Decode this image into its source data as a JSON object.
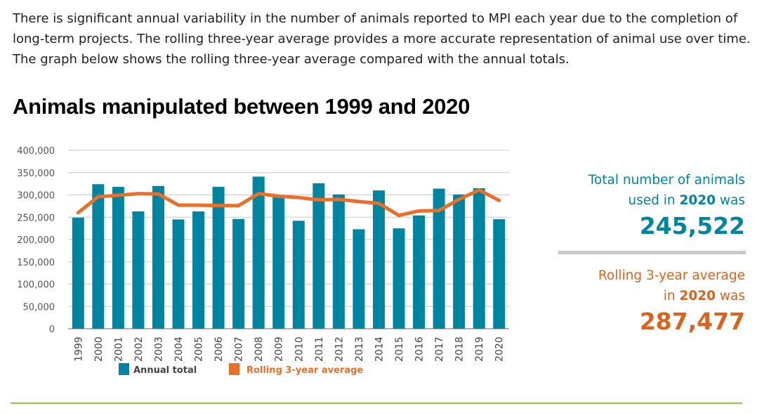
{
  "intro_text": "There is significant annual variability in the number of animals reported to MPI each year due to the completion of long-term projects. The rolling three-year average provides a more accurate representation of animal use over time. The graph below shows the rolling three-year average compared with the annual totals.",
  "chart_data": {
    "type": "bar",
    "title": "Animals manipulated between 1999 and 2020",
    "categories": [
      "1999",
      "2000",
      "2001",
      "2002",
      "2003",
      "2004",
      "2005",
      "2006",
      "2007",
      "2008",
      "2009",
      "2010",
      "2011",
      "2012",
      "2013",
      "2014",
      "2015",
      "2016",
      "2017",
      "2018",
      "2019",
      "2020"
    ],
    "series": [
      {
        "name": "Annual total",
        "type": "bar",
        "color": "#00849f",
        "values": [
          249000,
          324000,
          318000,
          263000,
          320000,
          245000,
          263000,
          318000,
          246000,
          341000,
          295000,
          242000,
          326000,
          301000,
          223000,
          310000,
          225000,
          254000,
          314000,
          301000,
          315000,
          245522
        ]
      },
      {
        "name": "Rolling 3-year average",
        "type": "line",
        "color": "#e8702a",
        "values": [
          260000,
          296000,
          299000,
          303000,
          302000,
          277000,
          277000,
          276000,
          276000,
          303000,
          297000,
          294000,
          289000,
          290000,
          285000,
          281000,
          254000,
          264000,
          265000,
          290000,
          311000,
          287477
        ]
      }
    ],
    "yticks": [
      "0",
      "50,000",
      "100,000",
      "150,000",
      "200,000",
      "250,000",
      "300,000",
      "350,000",
      "400,000"
    ],
    "ylim": [
      0,
      400000
    ],
    "grid": true,
    "legend": "bottom"
  },
  "sidebar": {
    "total_line1": "Total number of animals",
    "total_line2_pre": "used in ",
    "total_year": "2020",
    "total_line2_post": " was",
    "total_value": "245,522",
    "avg_line1": "Rolling 3-year average",
    "avg_line2_pre": "in ",
    "avg_year": "2020",
    "avg_line2_post": " was",
    "avg_value": "287,477"
  }
}
